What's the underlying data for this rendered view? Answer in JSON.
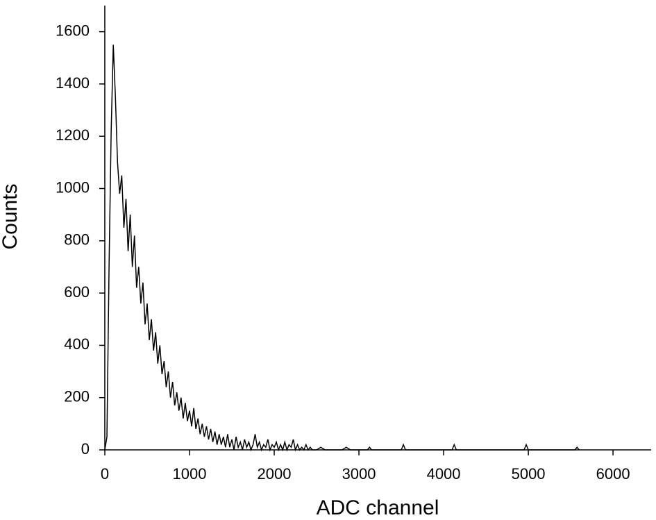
{
  "chart_data": {
    "type": "line",
    "x_label": "ADC channel",
    "y_label": "Counts",
    "x": [
      0,
      25,
      50,
      75,
      100,
      125,
      150,
      175,
      200,
      225,
      250,
      275,
      300,
      325,
      350,
      375,
      400,
      425,
      450,
      475,
      500,
      525,
      550,
      575,
      600,
      625,
      650,
      675,
      700,
      725,
      750,
      775,
      800,
      825,
      850,
      875,
      900,
      925,
      950,
      975,
      1000,
      1025,
      1050,
      1075,
      1100,
      1125,
      1150,
      1175,
      1200,
      1225,
      1250,
      1275,
      1300,
      1325,
      1350,
      1375,
      1400,
      1425,
      1450,
      1475,
      1500,
      1525,
      1550,
      1575,
      1600,
      1625,
      1650,
      1675,
      1700,
      1725,
      1750,
      1775,
      1800,
      1825,
      1850,
      1875,
      1900,
      1925,
      1950,
      1975,
      2000,
      2025,
      2050,
      2075,
      2100,
      2125,
      2150,
      2175,
      2200,
      2225,
      2250,
      2275,
      2300,
      2325,
      2350,
      2375,
      2400,
      2425,
      2450,
      2500,
      2550,
      2600,
      2800,
      2850,
      2900,
      3100,
      3125,
      3150,
      3500,
      3525,
      3550,
      4100,
      4125,
      4150,
      4950,
      4975,
      5000,
      5550,
      5575,
      5600
    ],
    "series": [
      {
        "name": "Counts",
        "color": "#000000",
        "values": [
          0,
          50,
          700,
          1220,
          1550,
          1350,
          1100,
          980,
          1050,
          850,
          960,
          760,
          900,
          700,
          820,
          620,
          700,
          560,
          640,
          480,
          560,
          420,
          500,
          380,
          450,
          330,
          400,
          290,
          340,
          240,
          300,
          200,
          260,
          170,
          220,
          150,
          200,
          120,
          180,
          110,
          150,
          90,
          160,
          80,
          120,
          60,
          100,
          50,
          90,
          40,
          80,
          30,
          70,
          20,
          60,
          20,
          50,
          10,
          60,
          10,
          40,
          0,
          50,
          10,
          30,
          0,
          40,
          10,
          30,
          0,
          20,
          60,
          10,
          30,
          0,
          20,
          10,
          40,
          0,
          20,
          10,
          30,
          0,
          20,
          0,
          30,
          0,
          20,
          10,
          40,
          0,
          20,
          0,
          10,
          0,
          20,
          0,
          10,
          0,
          0,
          10,
          0,
          0,
          10,
          0,
          0,
          10,
          0,
          0,
          20,
          0,
          0,
          20,
          0,
          0,
          20,
          0,
          0,
          10,
          0
        ]
      }
    ],
    "xlim": [
      0,
      6450
    ],
    "ylim": [
      0,
      1700
    ],
    "xticks": [
      0,
      1000,
      2000,
      3000,
      4000,
      5000,
      6000
    ],
    "yticks": [
      0,
      200,
      400,
      600,
      800,
      1000,
      1200,
      1400,
      1600
    ]
  }
}
